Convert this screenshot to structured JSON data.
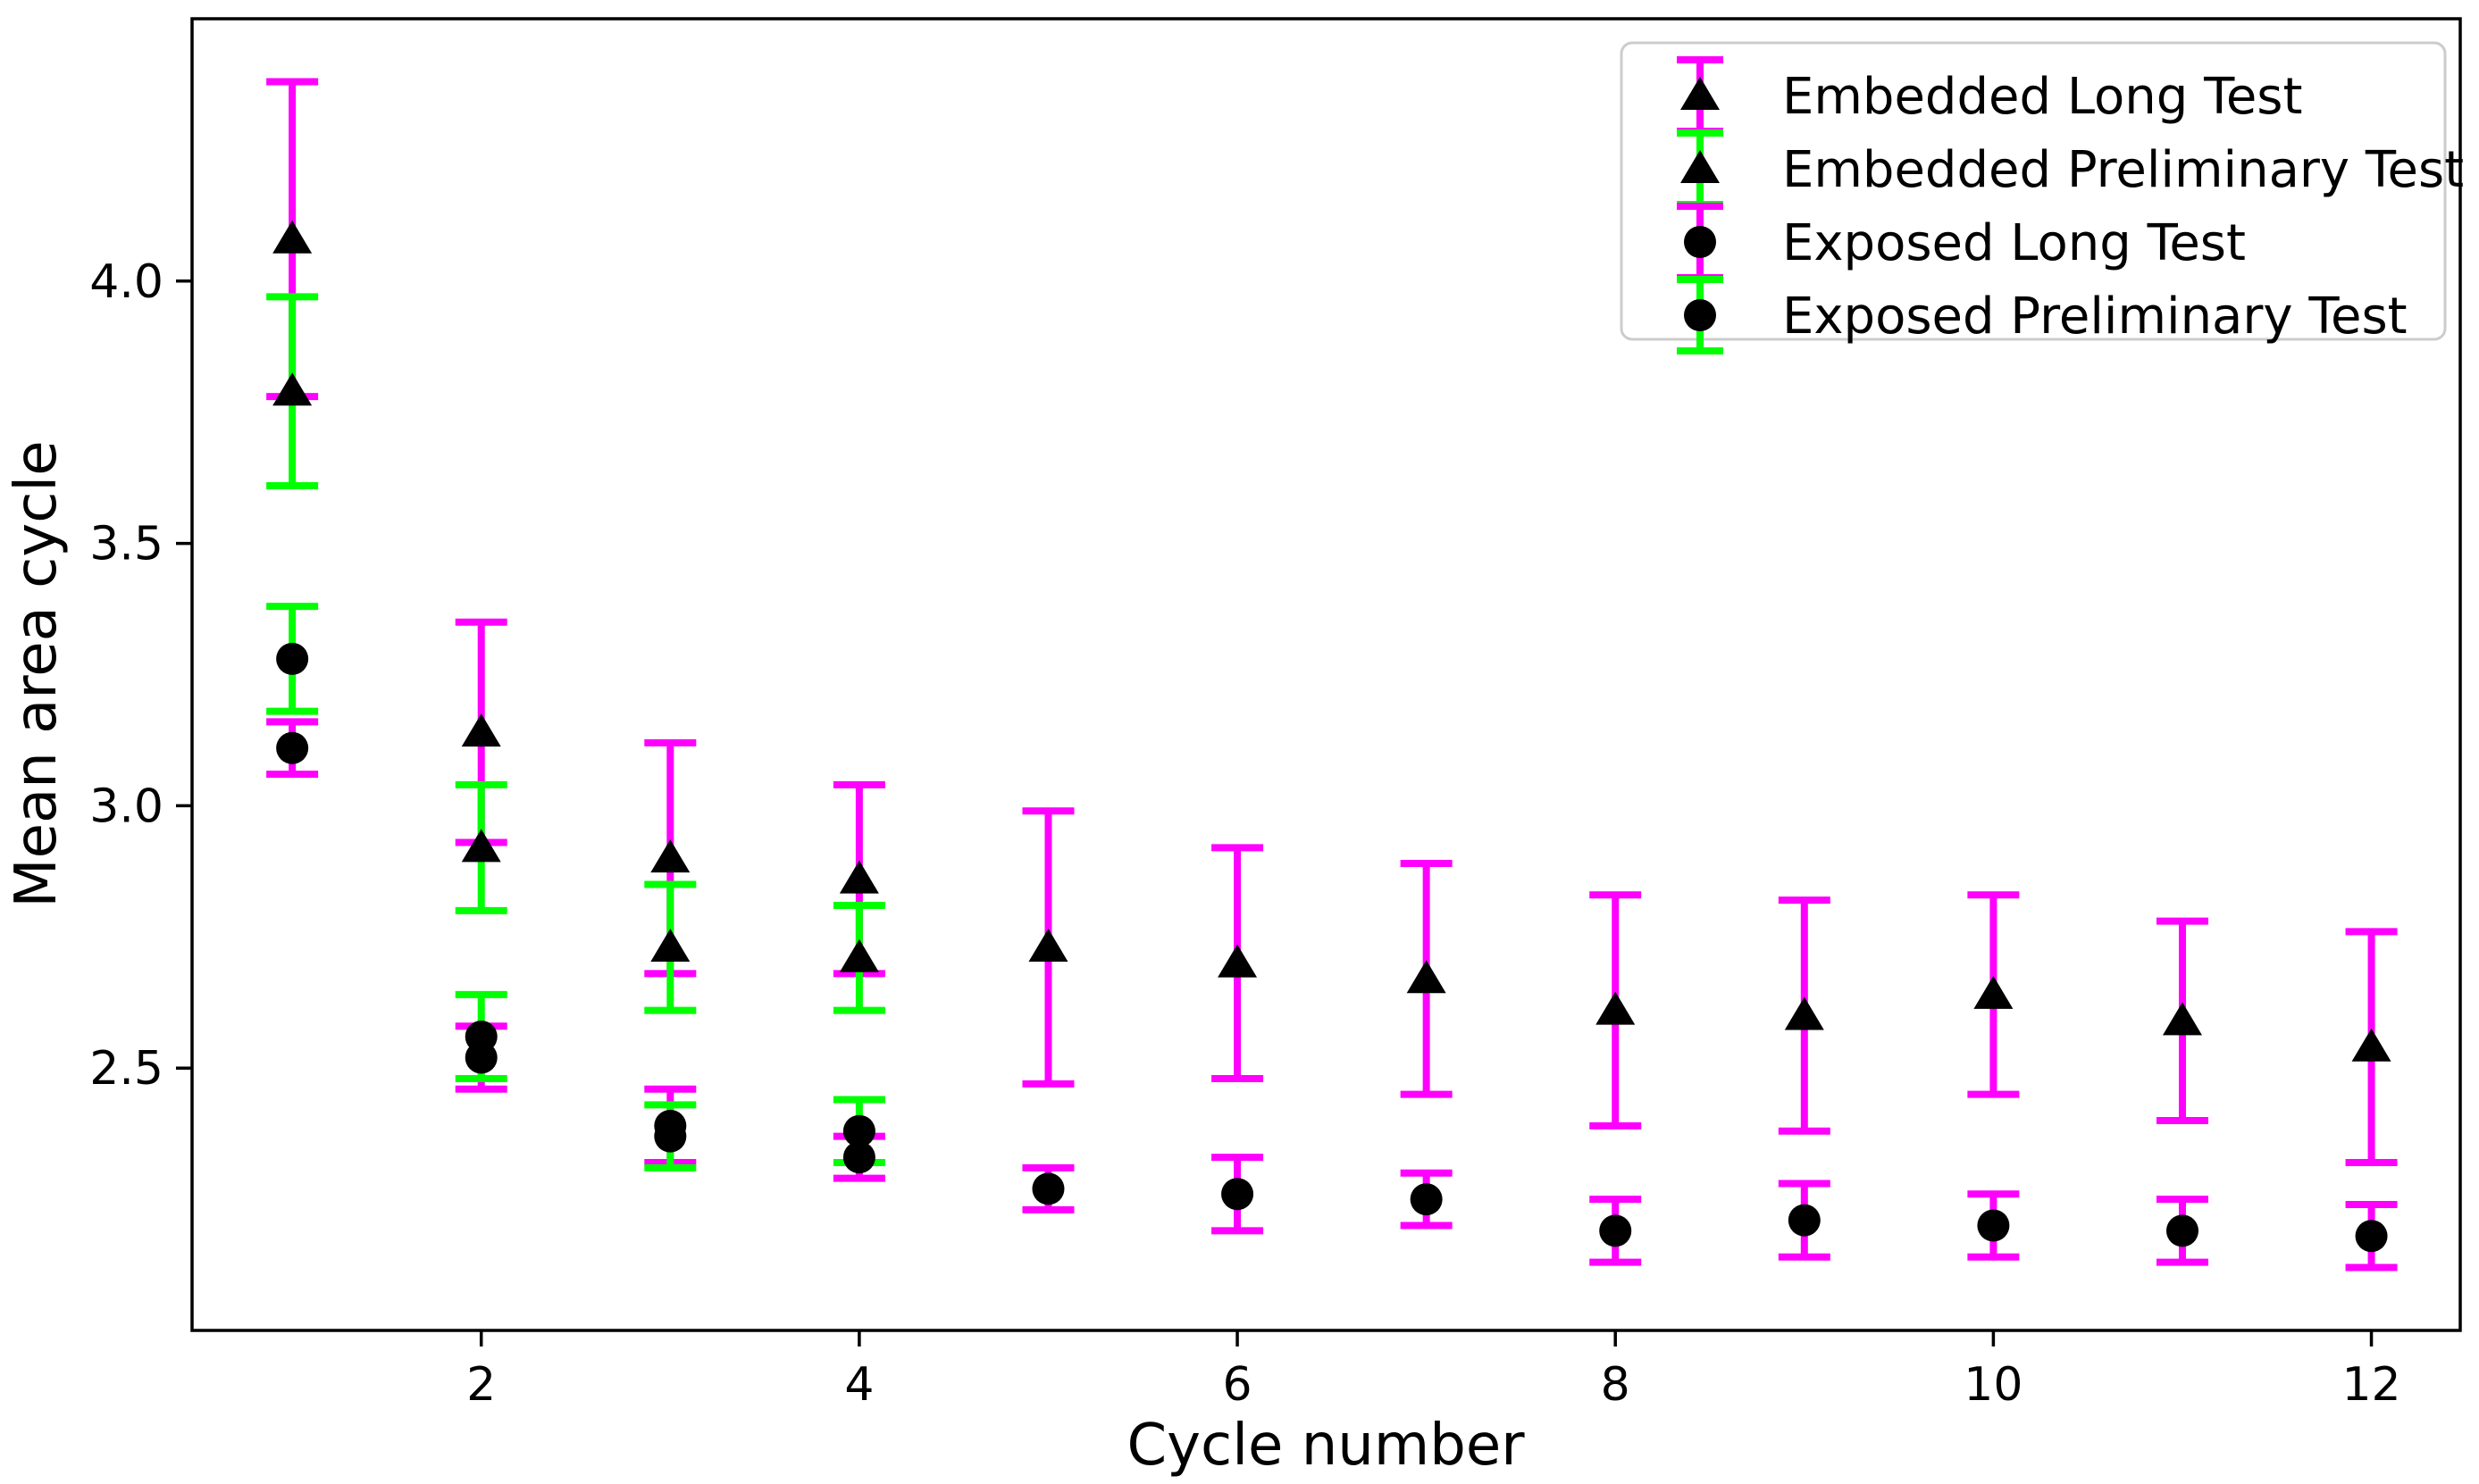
{
  "figure": {
    "background": "#ffffff",
    "plot_border_color": "#000000"
  },
  "chart_data": {
    "type": "scatter",
    "title": "",
    "xlabel": "Cycle number",
    "ylabel": "Mean area cycle",
    "xlim": [
      0.47,
      12.47
    ],
    "ylim": [
      2.0,
      4.5
    ],
    "xticks": [
      2,
      4,
      6,
      8,
      10,
      12
    ],
    "xtick_labels": [
      "2",
      "4",
      "6",
      "8",
      "10",
      "12"
    ],
    "yticks": [
      2.5,
      3.0,
      3.5,
      4.0
    ],
    "ytick_labels": [
      "2.5",
      "3.0",
      "3.5",
      "4.0"
    ],
    "grid": false,
    "marker_color": "#000000",
    "legend_position": "upper right",
    "series": [
      {
        "name": "Embedded Long Test",
        "marker": "triangle",
        "errorbar_color": "#FF00FF",
        "x": [
          1,
          2,
          3,
          4,
          5,
          6,
          7,
          8,
          9,
          10,
          11,
          12
        ],
        "y": [
          4.08,
          3.14,
          2.9,
          2.86,
          2.73,
          2.7,
          2.67,
          2.61,
          2.6,
          2.64,
          2.59,
          2.54
        ],
        "yerr": [
          0.3,
          0.21,
          0.22,
          0.18,
          0.26,
          0.22,
          0.22,
          0.22,
          0.22,
          0.19,
          0.19,
          0.22
        ]
      },
      {
        "name": "Embedded Preliminary Test",
        "marker": "triangle",
        "errorbar_color": "#00FF00",
        "x": [
          1,
          2,
          3,
          4
        ],
        "y": [
          3.79,
          2.92,
          2.73,
          2.71
        ],
        "yerr": [
          0.18,
          0.12,
          0.12,
          0.1
        ]
      },
      {
        "name": "Exposed Long Test",
        "marker": "circle",
        "errorbar_color": "#FF00FF",
        "x": [
          1,
          2,
          3,
          4,
          5,
          6,
          7,
          8,
          9,
          10,
          11,
          12
        ],
        "y": [
          3.11,
          2.52,
          2.39,
          2.33,
          2.27,
          2.26,
          2.25,
          2.19,
          2.21,
          2.2,
          2.19,
          2.18
        ],
        "yerr": [
          0.05,
          0.06,
          0.07,
          0.04,
          0.04,
          0.07,
          0.05,
          0.06,
          0.07,
          0.06,
          0.06,
          0.06
        ]
      },
      {
        "name": "Exposed Preliminary Test",
        "marker": "circle",
        "errorbar_color": "#00FF00",
        "x": [
          1,
          2,
          3,
          4
        ],
        "y": [
          3.28,
          2.56,
          2.37,
          2.38
        ],
        "yerr": [
          0.1,
          0.08,
          0.06,
          0.06
        ]
      }
    ]
  }
}
